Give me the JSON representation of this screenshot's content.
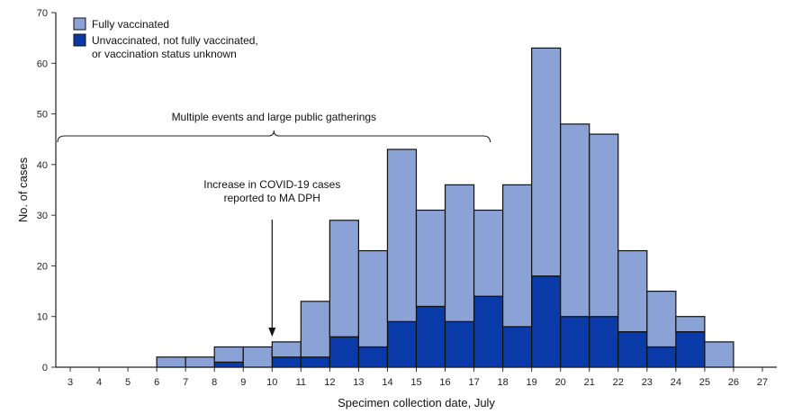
{
  "chart_data": {
    "type": "bar",
    "stacked": true,
    "xlabel": "Specimen collection date, July",
    "ylabel": "No. of cases",
    "ylim": [
      0,
      70
    ],
    "yticks": [
      0,
      10,
      20,
      30,
      40,
      50,
      60,
      70
    ],
    "categories": [
      3,
      4,
      5,
      6,
      7,
      8,
      9,
      10,
      11,
      12,
      13,
      14,
      15,
      16,
      17,
      18,
      19,
      20,
      21,
      22,
      23,
      24,
      25,
      26,
      27
    ],
    "series": [
      {
        "name": "Unvaccinated, not fully vaccinated, or vaccination status unknown",
        "color": "#0a3aa8",
        "values": [
          0,
          0,
          0,
          0,
          0,
          1,
          0,
          2,
          2,
          6,
          4,
          9,
          12,
          9,
          14,
          8,
          18,
          10,
          10,
          7,
          4,
          7,
          0,
          0,
          0
        ]
      },
      {
        "name": "Fully vaccinated",
        "color": "#8aa2d6",
        "values": [
          0,
          0,
          0,
          2,
          2,
          3,
          4,
          3,
          11,
          23,
          19,
          34,
          19,
          27,
          17,
          28,
          45,
          38,
          36,
          16,
          11,
          3,
          5,
          0,
          0
        ]
      }
    ],
    "legend": {
      "position": "top-left",
      "items": [
        {
          "label_lines": [
            "Fully vaccinated"
          ],
          "color": "#8aa2d6"
        },
        {
          "label_lines": [
            "Unvaccinated, not fully vaccinated,",
            "or vaccination status unknown"
          ],
          "color": "#0a3aa8"
        }
      ]
    },
    "annotations": {
      "bracket_label": "Multiple events and large public gatherings",
      "arrow_label_lines": [
        "Increase in COVID-19 cases",
        "reported to MA DPH"
      ]
    }
  }
}
